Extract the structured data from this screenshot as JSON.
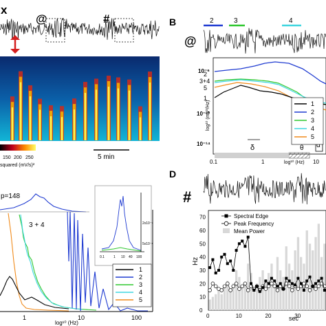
{
  "panels": {
    "A": {
      "x_marker": "x",
      "at_marker": "@",
      "hash_marker": "#",
      "colorbar_ticks": [
        "150",
        "200",
        "250"
      ],
      "colorbar_label": "squared (mV/s)²",
      "scalebar": "5 min"
    },
    "B": {
      "letter": "B",
      "marker": "@",
      "bands": [
        {
          "label": "2",
          "color": "#1f3bd1"
        },
        {
          "label": "3",
          "color": "#2ec72e"
        },
        {
          "label": "4",
          "color": "#3fd6e0"
        }
      ],
      "curve_labels": [
        "2",
        "3+4",
        "5",
        "1"
      ],
      "y_ticks": [
        "10⁻⁶",
        "10⁻¹⁰",
        "10⁻¹⁴"
      ],
      "y_label": "log¹⁰ (mV²/Hz)",
      "x_ticks": [
        "0.1",
        "1",
        "10"
      ],
      "x_label": "log¹⁰ (Hz)",
      "band_labels": [
        "δ",
        "θ",
        "α"
      ],
      "legend": [
        "1",
        "2",
        "3",
        "4",
        "5"
      ]
    },
    "C": {
      "annotation": "p=148",
      "curve_label": "3 + 4",
      "x_ticks": [
        "1",
        "10",
        "100"
      ],
      "x_label": "log¹⁰ (Hz)",
      "inset_x_ticks": [
        "0.1",
        "1",
        "10",
        "40",
        "100"
      ],
      "inset_y_ticks": [
        "2x10⁻⁷",
        "5x10⁻⁸"
      ],
      "legend": [
        "1",
        "2",
        "3",
        "4",
        "5"
      ]
    },
    "D": {
      "letter": "D",
      "marker": "#",
      "legend": [
        "Spectral Edge",
        "Peak Frequency",
        "Mean Power"
      ],
      "y_label": "Hz",
      "y_ticks": [
        "0",
        "10",
        "20",
        "30",
        "40",
        "50",
        "60",
        "70"
      ],
      "x_ticks": [
        "0",
        "10",
        "20",
        "30"
      ],
      "x_label": "sec"
    }
  },
  "colors": {
    "c1": "#000000",
    "c2": "#1f3bd1",
    "c3": "#2ec72e",
    "c4": "#3fd6e0",
    "c5": "#f08a1a"
  }
}
